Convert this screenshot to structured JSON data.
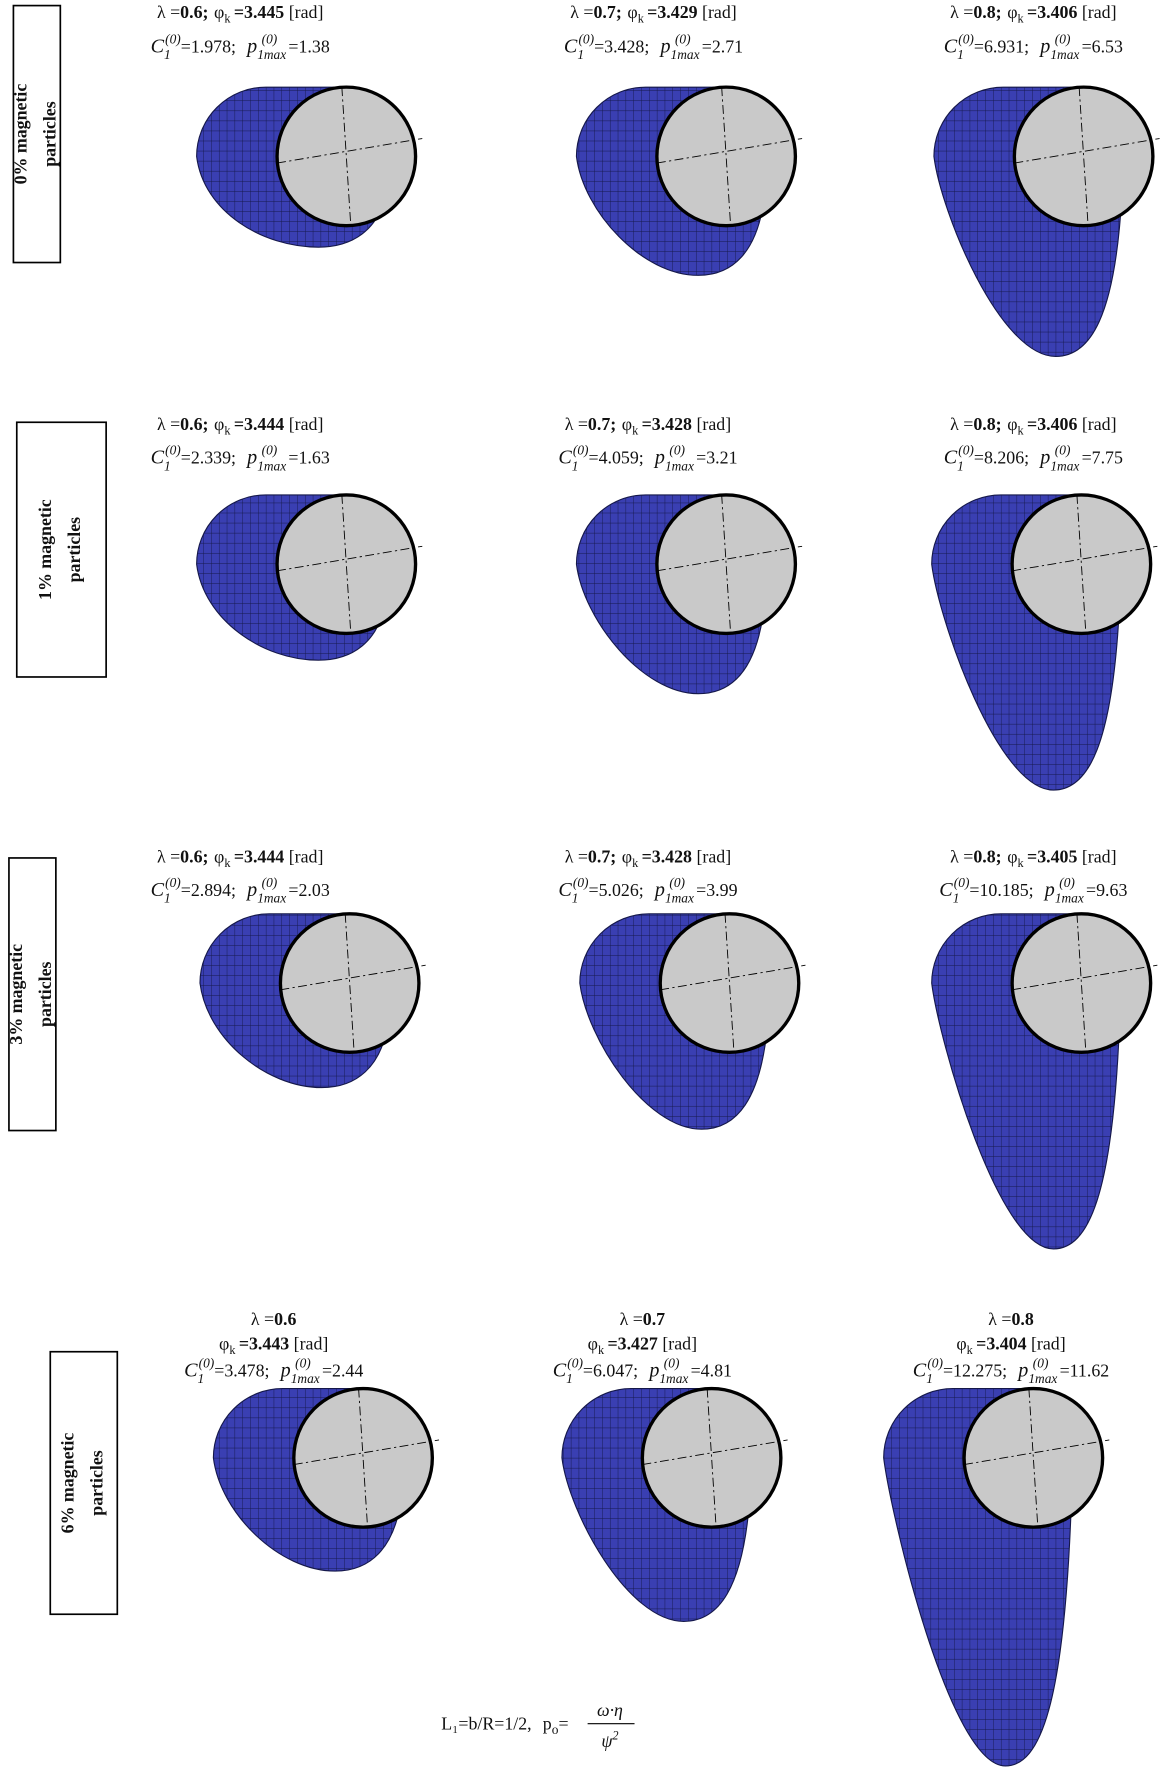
{
  "labels": {
    "lambda": "λ =",
    "sep": ";",
    "phi": "φ",
    "phi_sub": "k",
    "eq": "=",
    "unit": "[rad]",
    "c": "C",
    "c_sub": "1",
    "sup": "(0)",
    "p": "p",
    "p_sub": "1max"
  },
  "rows": [
    {
      "label": [
        "0% magnetic",
        "particles"
      ],
      "panels": [
        {
          "lambda": 0.6,
          "phi": 3.445,
          "c1": 1.978,
          "pmax": 1.38
        },
        {
          "lambda": 0.7,
          "phi": 3.429,
          "c1": 3.428,
          "pmax": 2.71
        },
        {
          "lambda": 0.8,
          "phi": 3.406,
          "c1": 6.931,
          "pmax": 6.53
        }
      ]
    },
    {
      "label": [
        "1% magnetic",
        "particles"
      ],
      "panels": [
        {
          "lambda": 0.6,
          "phi": 3.444,
          "c1": 2.339,
          "pmax": 1.63
        },
        {
          "lambda": 0.7,
          "phi": 3.428,
          "c1": 4.059,
          "pmax": 3.21
        },
        {
          "lambda": 0.8,
          "phi": 3.406,
          "c1": 8.206,
          "pmax": 7.75
        }
      ]
    },
    {
      "label": [
        "3% magnetic",
        "particles"
      ],
      "panels": [
        {
          "lambda": 0.6,
          "phi": 3.444,
          "c1": 2.894,
          "pmax": 2.03
        },
        {
          "lambda": 0.7,
          "phi": 3.428,
          "c1": 5.026,
          "pmax": 3.99
        },
        {
          "lambda": 0.8,
          "phi": 3.405,
          "c1": 10.185,
          "pmax": 9.63
        }
      ]
    },
    {
      "label": [
        "6% magnetic",
        "particles"
      ],
      "panels": [
        {
          "lambda": 0.6,
          "phi": 3.443,
          "c1": 3.478,
          "pmax": 2.44
        },
        {
          "lambda": 0.7,
          "phi": 3.427,
          "c1": 6.047,
          "pmax": 4.81
        },
        {
          "lambda": 0.8,
          "phi": 3.404,
          "c1": 12.275,
          "pmax": 11.62
        }
      ]
    }
  ],
  "footer": {
    "left": "L₁=b/R=1/2,",
    "p": "p",
    "p_sub": "o",
    "eq": "=",
    "num": "ω·η",
    "den": "ψ",
    "den_sup": "2"
  }
}
